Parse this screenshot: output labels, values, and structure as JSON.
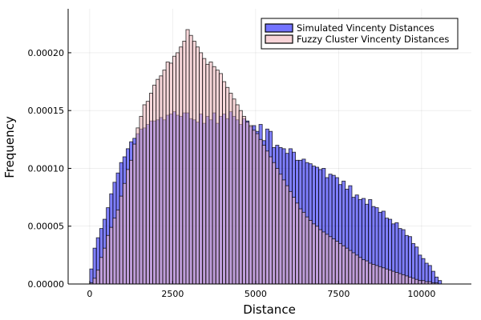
{
  "chart_data": {
    "type": "bar",
    "subtype": "overlaid-histogram",
    "xlabel": "Distance",
    "ylabel": "Frequency",
    "xlim": [
      -650,
      11500
    ],
    "ylim": [
      0,
      0.000238
    ],
    "xticks": [
      0,
      2500,
      5000,
      7500,
      10000
    ],
    "xtick_labels": [
      "0",
      "2500",
      "5000",
      "7500",
      "10000"
    ],
    "yticks": [
      0,
      5e-05,
      0.0001,
      0.00015,
      0.0002
    ],
    "ytick_labels": [
      "0.00000",
      "0.00005",
      "0.00010",
      "0.00015",
      "0.00020"
    ],
    "grid": true,
    "legend_position": "top-right",
    "bin_width": 100,
    "bin_start": 0,
    "series": [
      {
        "name": "Simulated Vincenty Distances",
        "color": "#0000ff",
        "opacity": 0.5,
        "values": [
          1.3e-05,
          3.1e-05,
          4e-05,
          4.8e-05,
          5.6e-05,
          6.6e-05,
          7.8e-05,
          8.8e-05,
          9.6e-05,
          0.000105,
          0.00011,
          0.000117,
          0.000123,
          0.000126,
          0.00013,
          0.000134,
          0.000135,
          0.000138,
          0.000141,
          0.000141,
          0.000142,
          0.000144,
          0.000142,
          0.000146,
          0.000147,
          0.000149,
          0.000146,
          0.000145,
          0.000148,
          0.000148,
          0.000143,
          0.000142,
          0.00014,
          0.000147,
          0.000139,
          0.000145,
          0.000142,
          0.000148,
          0.000139,
          0.000145,
          0.000147,
          0.000143,
          0.000149,
          0.000145,
          0.000142,
          0.000138,
          0.000143,
          0.000141,
          0.000136,
          0.000137,
          0.000132,
          0.000138,
          0.000124,
          0.000134,
          0.000132,
          0.000118,
          0.00012,
          0.000118,
          0.000117,
          0.000113,
          0.000117,
          0.000114,
          0.000107,
          0.000107,
          0.000108,
          0.000105,
          0.000104,
          0.000102,
          0.000101,
          9.9e-05,
          0.0001,
          9.2e-05,
          9.5e-05,
          9.4e-05,
          9.2e-05,
          8.6e-05,
          8.9e-05,
          8.2e-05,
          8.5e-05,
          7.5e-05,
          7.7e-05,
          7.3e-05,
          7.4e-05,
          6.9e-05,
          7.3e-05,
          6.7e-05,
          6.6e-05,
          6.2e-05,
          6.3e-05,
          5.7e-05,
          5.6e-05,
          5.2e-05,
          5.3e-05,
          4.8e-05,
          4.7e-05,
          4.2e-05,
          4.1e-05,
          3.5e-05,
          3.2e-05,
          2.5e-05,
          2.2e-05,
          1.8e-05,
          1.6e-05,
          1.1e-05,
          6e-06,
          3e-06
        ]
      },
      {
        "name": "Fuzzy Cluster Vincenty Distances",
        "color": "#f4b8be",
        "opacity": 0.55,
        "values": [
          1e-06,
          5e-06,
          1.2e-05,
          2.3e-05,
          3.1e-05,
          4.2e-05,
          4.9e-05,
          5.7e-05,
          6.4e-05,
          7.6e-05,
          8.7e-05,
          9.9e-05,
          0.000107,
          0.000121,
          0.000135,
          0.000145,
          0.000155,
          0.000158,
          0.000165,
          0.000172,
          0.000177,
          0.00018,
          0.000185,
          0.000192,
          0.000191,
          0.000197,
          0.0002,
          0.000205,
          0.00021,
          0.00022,
          0.000215,
          0.00021,
          0.000205,
          0.0002,
          0.000195,
          0.00019,
          0.000192,
          0.000188,
          0.000185,
          0.000182,
          0.000175,
          0.00017,
          0.000165,
          0.00016,
          0.000155,
          0.00015,
          0.000145,
          0.00014,
          0.000137,
          0.000133,
          0.00013,
          0.000125,
          0.00012,
          0.000115,
          0.00011,
          0.000105,
          0.0001,
          9.5e-05,
          9e-05,
          8.5e-05,
          8e-05,
          7.5e-05,
          7e-05,
          6.5e-05,
          6.2e-05,
          5.8e-05,
          5.5e-05,
          5.2e-05,
          5e-05,
          4.7e-05,
          4.5e-05,
          4.3e-05,
          4.1e-05,
          3.9e-05,
          3.7e-05,
          3.5e-05,
          3.3e-05,
          3.1e-05,
          2.9e-05,
          2.7e-05,
          2.5e-05,
          2.3e-05,
          2.1e-05,
          2e-05,
          1.8e-05,
          1.7e-05,
          1.6e-05,
          1.5e-05,
          1.4e-05,
          1.3e-05,
          1.2e-05,
          1.1e-05,
          1e-05,
          9e-06,
          8e-06,
          7e-06,
          6e-06,
          5e-06,
          4e-06,
          3e-06,
          3e-06,
          2e-06,
          2e-06,
          1e-06,
          1e-06,
          0.0
        ]
      }
    ]
  }
}
